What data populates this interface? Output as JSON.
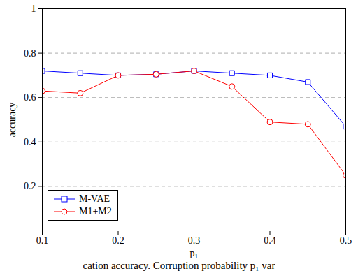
{
  "chart_data": {
    "type": "line",
    "caption": "cation accuracy. Corruption probability p₁ var",
    "x_label": "p₁",
    "y_label": "accuracy",
    "x": [
      0.1,
      0.15,
      0.2,
      0.25,
      0.3,
      0.35,
      0.4,
      0.45,
      0.5
    ],
    "series": [
      {
        "name": "M-VAE",
        "color": "#0000ff",
        "marker": "square",
        "values": [
          0.72,
          0.71,
          0.7,
          0.705,
          0.72,
          0.71,
          0.7,
          0.67,
          0.47
        ]
      },
      {
        "name": "M1+M2",
        "color": "#ff0000",
        "marker": "circle",
        "values": [
          0.63,
          0.62,
          0.7,
          0.705,
          0.72,
          0.65,
          0.49,
          0.48,
          0.25
        ]
      }
    ],
    "xlim": [
      0.1,
      0.5
    ],
    "xticks": [
      0.1,
      0.2,
      0.3,
      0.4,
      0.5
    ],
    "ylim": [
      0,
      1
    ],
    "yticks": [
      0.2,
      0.4,
      0.6,
      0.8,
      1
    ],
    "grid": true,
    "legend": "lower left"
  }
}
